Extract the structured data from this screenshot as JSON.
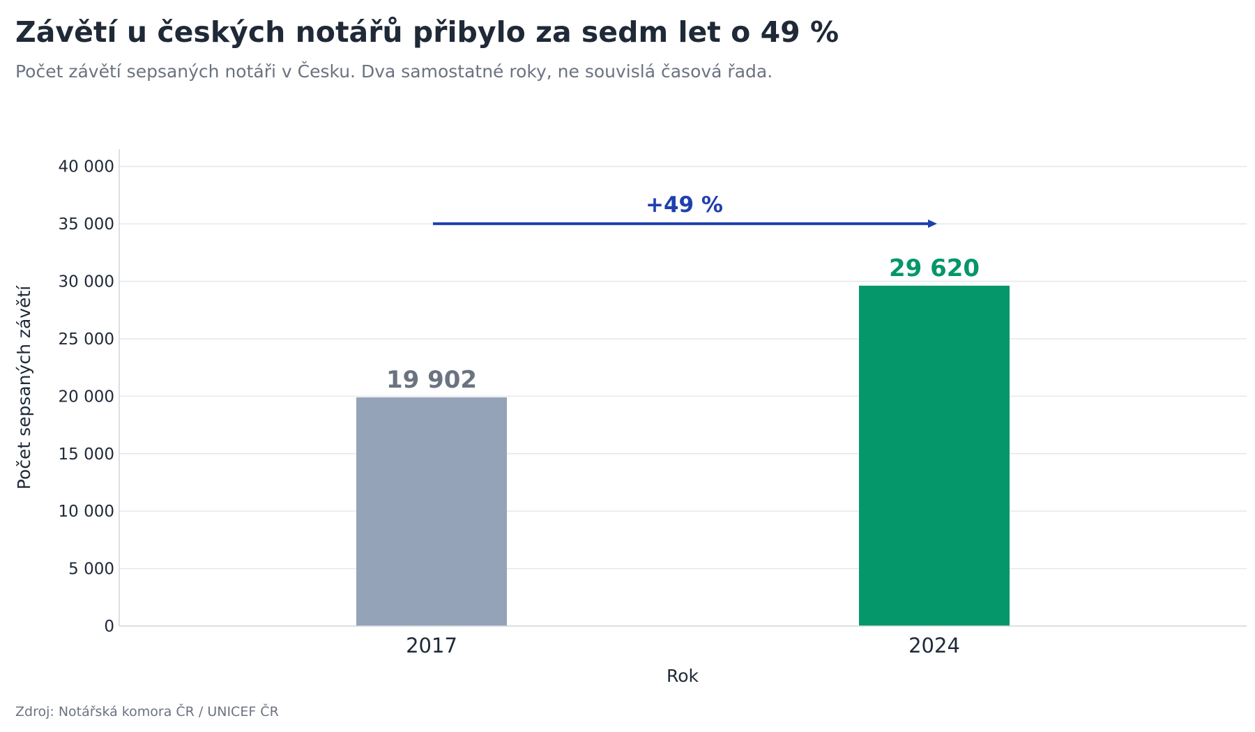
{
  "title": "Závětí u českých notářů přibylo za sedm let o 49 %",
  "subtitle": "Počet závětí sepsaných notáři v Česku. Dva samostatné roky, ne souvislá časová řada.",
  "source": "Zdroj: Notářská komora ČR / UNICEF ČR",
  "chart_data": {
    "type": "bar",
    "categories": [
      "2017",
      "2024"
    ],
    "values": [
      19902,
      29620
    ],
    "value_labels": [
      "19 902",
      "29 620"
    ],
    "bar_colors": [
      "#94a3b8",
      "#059669"
    ],
    "label_colors": [
      "#6b7280",
      "#059669"
    ],
    "xlabel": "Rok",
    "ylabel": "Počet sepsaných závětí",
    "ylim": [
      0,
      41500
    ],
    "yticks": [
      0,
      5000,
      10000,
      15000,
      20000,
      25000,
      30000,
      35000,
      40000
    ],
    "ytick_labels": [
      "0",
      "5 000",
      "10 000",
      "15 000",
      "20 000",
      "25 000",
      "30 000",
      "35 000",
      "40 000"
    ],
    "grid": true,
    "annotation": {
      "text": "+49 %",
      "y": 35200,
      "from": "2017",
      "to": "2024",
      "color": "#1e40af"
    }
  }
}
